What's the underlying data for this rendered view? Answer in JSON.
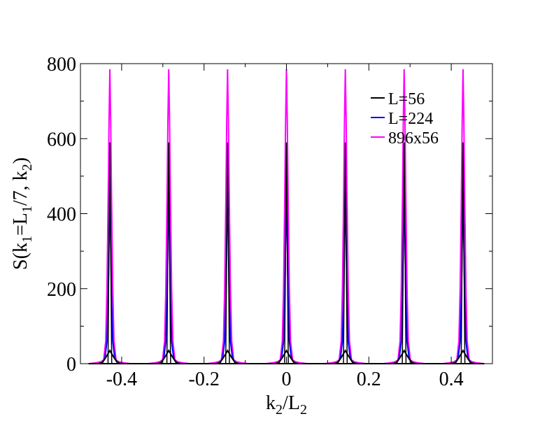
{
  "chart_data": {
    "type": "line",
    "title": "",
    "xlabel": {
      "base": "k",
      "sub1": "2",
      "mid": "/L",
      "sub2": "2"
    },
    "ylabel": {
      "p1": "S(k",
      "s1": "1",
      "p2": "=L",
      "s2": "1",
      "p3": "/7, k",
      "s3": "2",
      "p4": ")"
    },
    "xlim": [
      -0.5,
      0.5
    ],
    "ylim": [
      0,
      800
    ],
    "x_ticks": [
      -0.4,
      -0.2,
      0,
      0.2,
      0.4
    ],
    "x_tick_labels": [
      "-0.4",
      "-0.2",
      "0",
      "0.2",
      "0.4"
    ],
    "y_ticks": [
      0,
      200,
      400,
      600,
      800
    ],
    "y_tick_labels": [
      "0",
      "200",
      "400",
      "600",
      "800"
    ],
    "peak_positions": [
      -0.4286,
      -0.2857,
      -0.1429,
      0.0,
      0.1429,
      0.2857,
      0.4286
    ],
    "legend_position": "top-right",
    "series": [
      {
        "name": "L=56",
        "color": "#000000",
        "peak_height": 35,
        "half_width": 0.012,
        "profile": [
          [
            -0.028,
            0
          ],
          [
            -0.018,
            3
          ],
          [
            -0.009,
            18
          ],
          [
            0,
            35
          ],
          [
            0.009,
            18
          ],
          [
            0.018,
            3
          ],
          [
            0.028,
            0
          ]
        ],
        "inner_spike": {
          "height": 590,
          "half_width": 0.0045
        }
      },
      {
        "name": "L=224",
        "color": "#0000ff",
        "peak_height": 500,
        "half_width": 0.006,
        "profile": [
          [
            -0.02,
            0
          ],
          [
            -0.012,
            15
          ],
          [
            -0.007,
            60
          ],
          [
            -0.004,
            180
          ],
          [
            -0.002,
            330
          ],
          [
            0,
            500
          ],
          [
            0.002,
            330
          ],
          [
            0.004,
            180
          ],
          [
            0.007,
            60
          ],
          [
            0.012,
            15
          ],
          [
            0.02,
            0
          ]
        ]
      },
      {
        "name": "896x56",
        "color": "#ff00ff",
        "peak_height": 785,
        "half_width": 0.01,
        "profile": [
          [
            -0.05,
            0
          ],
          [
            -0.035,
            2
          ],
          [
            -0.022,
            5
          ],
          [
            -0.015,
            10
          ],
          [
            -0.01,
            60
          ],
          [
            -0.007,
            200
          ],
          [
            -0.004,
            450
          ],
          [
            -0.002,
            650
          ],
          [
            0,
            785
          ],
          [
            0.002,
            650
          ],
          [
            0.004,
            450
          ],
          [
            0.007,
            200
          ],
          [
            0.01,
            60
          ],
          [
            0.015,
            10
          ],
          [
            0.022,
            5
          ],
          [
            0.035,
            2
          ],
          [
            0.05,
            0
          ]
        ]
      }
    ]
  }
}
